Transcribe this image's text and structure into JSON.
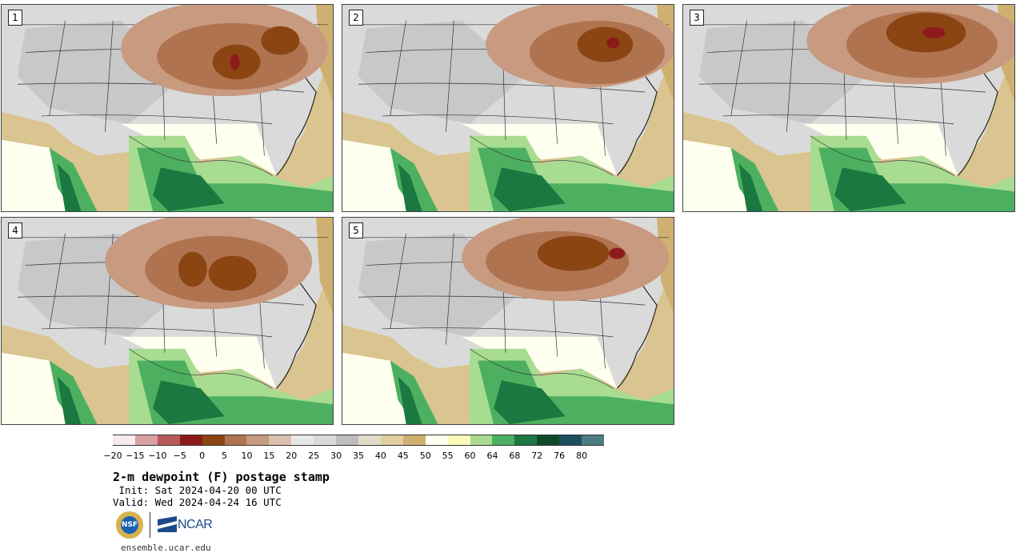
{
  "panels": [
    {
      "label": "1"
    },
    {
      "label": "2"
    },
    {
      "label": "3"
    },
    {
      "label": "4"
    },
    {
      "label": "5"
    }
  ],
  "colorbar": {
    "colors": [
      "#f5ecec",
      "#d8a0a0",
      "#b85a5a",
      "#8c1a1a",
      "#8b4513",
      "#b07350",
      "#c89a80",
      "#dcc0b0",
      "#e8e8e8",
      "#dadada",
      "#bdbdbd",
      "#e0dcc8",
      "#e0cfa0",
      "#cfb070",
      "#fffff0",
      "#fbfab8",
      "#a8dc90",
      "#4cb060",
      "#1a7840",
      "#0e4a28",
      "#1e5060",
      "#4e7c80"
    ],
    "ticks": [
      "−20",
      "−15",
      "−10",
      "−5",
      "0",
      "5",
      "10",
      "15",
      "20",
      "25",
      "30",
      "35",
      "40",
      "45",
      "50",
      "55",
      "60",
      "64",
      "68",
      "72",
      "76",
      "80"
    ]
  },
  "title": "2-m dewpoint (F) postage stamp",
  "init": " Init: Sat 2024-04-20 00 UTC",
  "valid": "Valid: Wed 2024-04-24 16 UTC",
  "logos": {
    "nsf": "NSF",
    "ncar": "NCAR"
  },
  "site": "ensemble.ucar.edu"
}
